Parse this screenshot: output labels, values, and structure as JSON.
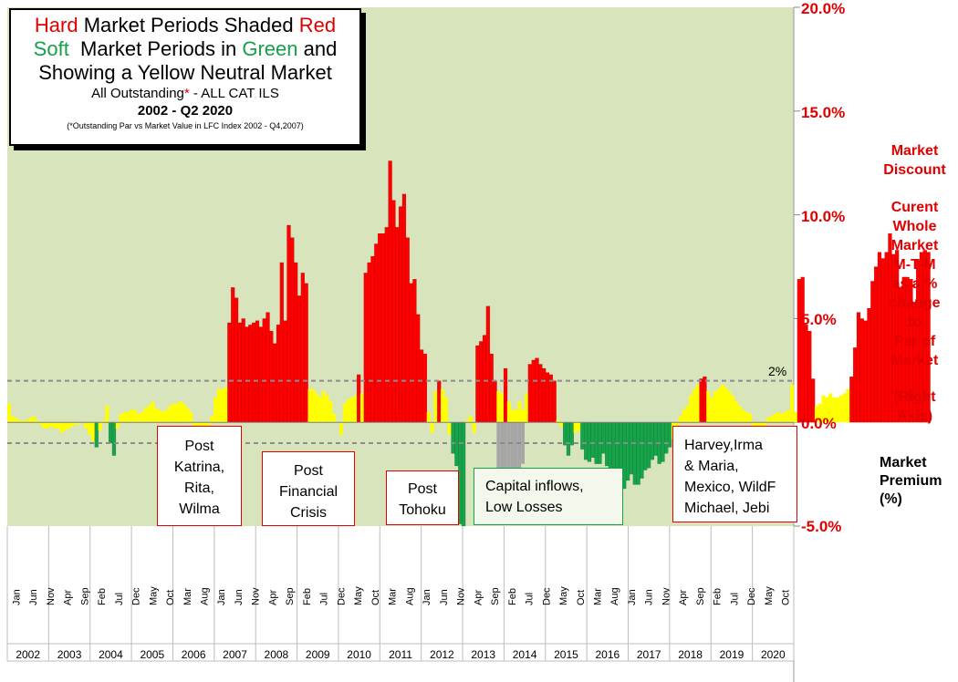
{
  "title": {
    "l1a": "Hard",
    "l1b": " Market Periods Shaded ",
    "l1c": "Red",
    "l2a": "Soft",
    "l2b": "  Market Periods in ",
    "l2c": "Green",
    "l2d": " and",
    "l3": "Showing a Yellow Neutral Market",
    "l4a": "All Outstanding",
    "l4b": "*",
    "l4c": " - ALL CAT ILS",
    "l5": "2002 - Q2 2020",
    "l6": "(*Outstanding Par vs Market Value in LFC Index 2002 - Q4,2007)"
  },
  "right_axis_label": {
    "discount": [
      "Market",
      "Discount"
    ],
    "desc": [
      "Curent",
      "Whole",
      "Market",
      "M-T-M",
      "as a %",
      "change",
      "to",
      "Par of",
      "Market"
    ],
    "axis": [
      "(Right",
      "Axis)"
    ],
    "premium": [
      "Market",
      "Premium",
      "(%)"
    ]
  },
  "threshold_label": "2%",
  "annotations": [
    {
      "name": "note-katrina",
      "lines": [
        "Post",
        "Katrina,",
        "Rita,",
        "Wilma"
      ]
    },
    {
      "name": "note-financial-crisis",
      "lines": [
        "Post",
        "Financial",
        "Crisis"
      ]
    },
    {
      "name": "note-tohoku",
      "lines": [
        "Post",
        "Tohoku"
      ]
    },
    {
      "name": "note-capital-inflows",
      "lines": [
        "Capital inflows,",
        "Low Losses"
      ]
    },
    {
      "name": "note-2017-storms",
      "lines": [
        "Harvey,Irma",
        "& Maria,",
        "Mexico, WildF",
        "Michael, Jebi"
      ]
    }
  ],
  "colors": {
    "hard": "#ff0000",
    "soft": "#17a34a",
    "neutral": "#ffff00",
    "grey": "#a6a6a6",
    "plot_bg": "#d8e4bc"
  },
  "chart_data": {
    "type": "bar",
    "ylim": [
      -5,
      20
    ],
    "y_ticks": [
      "20.0%",
      "15.0%",
      "10.0%",
      "5.0%",
      "0.0%",
      "-5.0%"
    ],
    "reference_lines": [
      2,
      -1
    ],
    "years": [
      "2002",
      "2003",
      "2004",
      "2005",
      "2006",
      "2007",
      "2008",
      "2009",
      "2010",
      "2011",
      "2012",
      "2013",
      "2014",
      "2015",
      "2016",
      "2017",
      "2018",
      "2019",
      "2020"
    ],
    "month_labels": [
      "Jan",
      "Jun",
      "Nov",
      "Apr",
      "Sep",
      "Feb",
      "Jul",
      "Dec",
      "May",
      "Oct",
      "Mar",
      "Aug",
      "Jan",
      "Jun",
      "Nov",
      "Apr",
      "Sep",
      "Feb",
      "Jul",
      "Dec",
      "May",
      "Oct",
      "Mar",
      "Aug",
      "Jan",
      "Jun",
      "Nov",
      "Apr",
      "Sep",
      "Feb",
      "Jul",
      "Dec",
      "May",
      "Oct",
      "Mar",
      "Aug",
      "Jan",
      "Jun",
      "Nov",
      "Apr",
      "Sep",
      "Feb",
      "Jul",
      "Dec",
      "May",
      "Oct"
    ],
    "first_month": "2002-01",
    "values": [
      0.9,
      0.3,
      0.2,
      0.1,
      0.1,
      0.1,
      0.2,
      0.3,
      0.1,
      -0.1,
      -0.3,
      -0.3,
      -0.2,
      -0.3,
      -0.3,
      -0.5,
      -0.4,
      -0.3,
      -0.2,
      -0.1,
      -0.1,
      0.0,
      -0.3,
      -0.6,
      -0.9,
      -1.2,
      -0.4,
      0.1,
      0.8,
      -1.0,
      -1.6,
      -0.3,
      0.4,
      0.5,
      0.5,
      0.6,
      0.6,
      0.4,
      0.5,
      0.7,
      0.8,
      1.0,
      0.7,
      0.6,
      0.5,
      0.6,
      0.8,
      0.9,
      0.9,
      1.0,
      0.9,
      0.7,
      0.5,
      -0.6,
      -0.8,
      -0.9,
      -0.7,
      -0.5,
      0.3,
      1.2,
      1.6,
      1.6,
      1.7,
      4.8,
      6.5,
      6.0,
      4.8,
      5.0,
      4.6,
      4.7,
      4.8,
      4.9,
      4.6,
      5.0,
      5.3,
      4.4,
      3.8,
      4.7,
      7.7,
      4.9,
      9.5,
      8.9,
      7.7,
      6.1,
      7.2,
      6.7,
      1.6,
      1.6,
      1.4,
      1.2,
      1.5,
      1.3,
      1.0,
      0.4,
      0.0,
      -0.6,
      0.9,
      1.1,
      1.2,
      1.3,
      2.3,
      1.4,
      7.2,
      7.7,
      8.0,
      8.6,
      9.1,
      9.1,
      9.4,
      12.6,
      10.7,
      9.4,
      10.4,
      11.0,
      8.9,
      6.7,
      6.9,
      5.2,
      3.5,
      3.3,
      0.5,
      -0.5,
      1.5,
      2.0,
      1.6,
      1.2,
      -0.6,
      -1.5,
      -2.1,
      -4.9,
      -5.0,
      0.1,
      0.3,
      -0.5,
      3.7,
      3.9,
      4.2,
      5.6,
      3.3,
      2.0,
      1.5,
      1.4,
      2.6,
      1.0,
      0.6,
      0.6,
      1.0,
      0.6,
      1.4,
      2.8,
      3.0,
      3.1,
      2.8,
      2.6,
      2.4,
      2.3,
      2.0,
      0.1,
      -0.2,
      -1.1,
      -1.6,
      -1.1,
      -0.5,
      -0.4,
      -1.3,
      -1.8,
      -1.9,
      -1.7,
      -2.0,
      -2.0,
      -1.5,
      -2.1,
      -2.2,
      -2.6,
      -2.7,
      -2.8,
      -3.2,
      -2.8,
      -2.5,
      -3.0,
      -3.0,
      -2.7,
      -2.3,
      -2.2,
      -1.8,
      -1.6,
      -2.0,
      -1.9,
      -1.5,
      -1.2,
      -0.8,
      -0.4,
      0.3,
      0.6,
      0.8,
      1.3,
      1.6,
      1.8,
      2.1,
      2.2,
      1.5,
      1.2,
      1.5,
      1.6,
      1.8,
      1.7,
      1.5,
      1.3,
      1.0,
      0.8,
      0.6,
      0.5,
      0.4,
      -0.4,
      -0.5,
      -0.3,
      -0.2,
      0.2,
      0.3,
      0.4,
      0.5,
      0.4,
      0.5,
      0.6,
      1.8,
      0.5,
      6.9,
      7.0,
      4.7,
      4.4,
      2.1,
      0.8,
      0.9,
      1.3,
      1.2,
      1.4,
      1.2,
      1.2,
      1.3,
      1.4,
      1.6,
      2.2,
      3.6,
      5.3,
      5.0,
      4.9,
      5.5,
      6.8,
      7.5,
      8.2,
      7.9,
      8.2,
      9.1,
      8.1,
      8.3,
      6.5,
      7.0,
      7.0,
      6.9,
      5.8,
      7.8,
      8.2,
      8.3,
      8.2
    ],
    "grey_overlay": {
      "start": 140,
      "values": [
        2.6,
        2.8,
        3.2,
        3.2,
        3.0,
        2.8,
        2.5,
        2.0
      ]
    },
    "series": [
      {
        "name": "Hard",
        "color": "#ff0000"
      },
      {
        "name": "Soft",
        "color": "#17a34a"
      },
      {
        "name": "Neutral",
        "color": "#ffff00"
      }
    ]
  }
}
